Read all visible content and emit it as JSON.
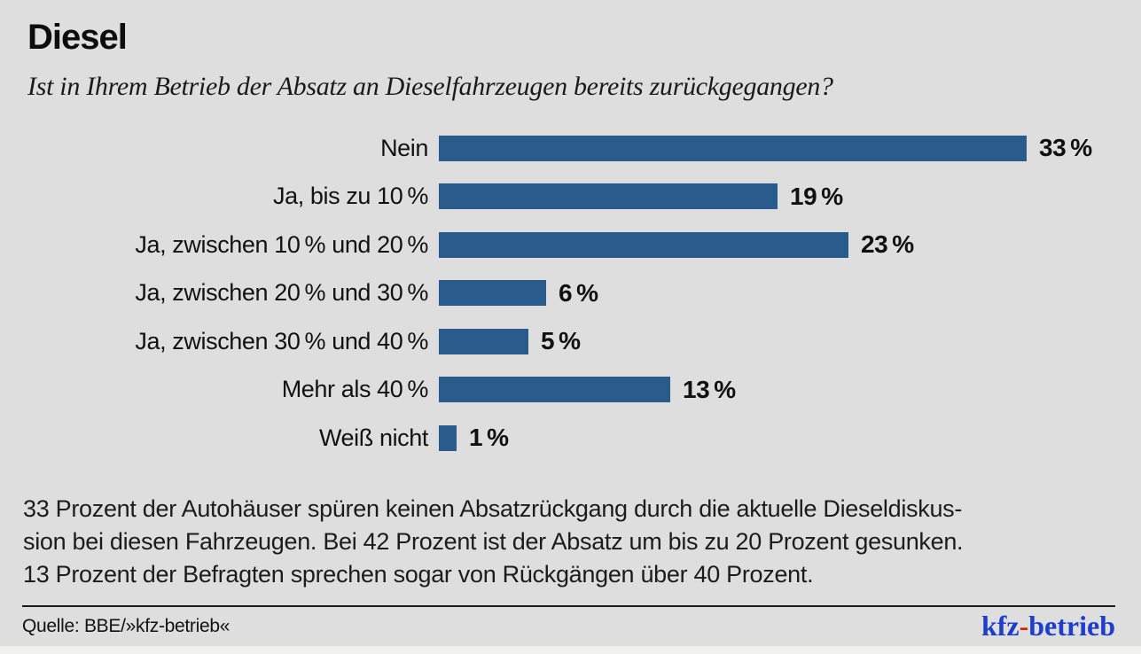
{
  "theme": {
    "background": "#dedede",
    "bar_color": "#2a5b8d",
    "text_color": "#111111",
    "logo_blue": "#1c3ecb",
    "logo_red": "#e01e00"
  },
  "header": {
    "title": "Diesel",
    "subtitle": "Ist in Ihrem Betrieb der Absatz an Dieselfahrzeugen bereits zurückgegangen?"
  },
  "chart_data": {
    "type": "bar",
    "orientation": "horizontal",
    "title": "Diesel",
    "xlabel": "",
    "ylabel": "",
    "xlim": [
      0,
      35
    ],
    "grid": false,
    "legend": "none",
    "unit": "percent",
    "bar_color": "#2a5b8d",
    "categories": [
      "Nein",
      "Ja, bis zu 10 %",
      "Ja, zwischen 10 % und 20 %",
      "Ja, zwischen 20 % und 30 %",
      "Ja, zwischen 30 % und 40 %",
      "Mehr als 40 %",
      "Weiß nicht"
    ],
    "values": [
      33,
      19,
      23,
      6,
      5,
      13,
      1
    ],
    "value_labels": [
      "33 %",
      "19 %",
      "23 %",
      "6 %",
      "5 %",
      "13 %",
      "1 %"
    ]
  },
  "body": {
    "lines": [
      "33 Prozent der Autohäuser spüren keinen Absatzrückgang durch die aktuelle Dieseldiskus-",
      "sion bei diesen Fahrzeugen. Bei 42 Prozent ist der Absatz um bis zu 20 Prozent gesunken.",
      "13 Prozent der Befragten sprechen sogar von Rückgängen über 40 Prozent."
    ]
  },
  "footer": {
    "source": "Quelle: BBE/»kfz-betrieb«",
    "logo": {
      "part1": "kfz",
      "hyphen": "-",
      "part2": "betrieb"
    }
  }
}
